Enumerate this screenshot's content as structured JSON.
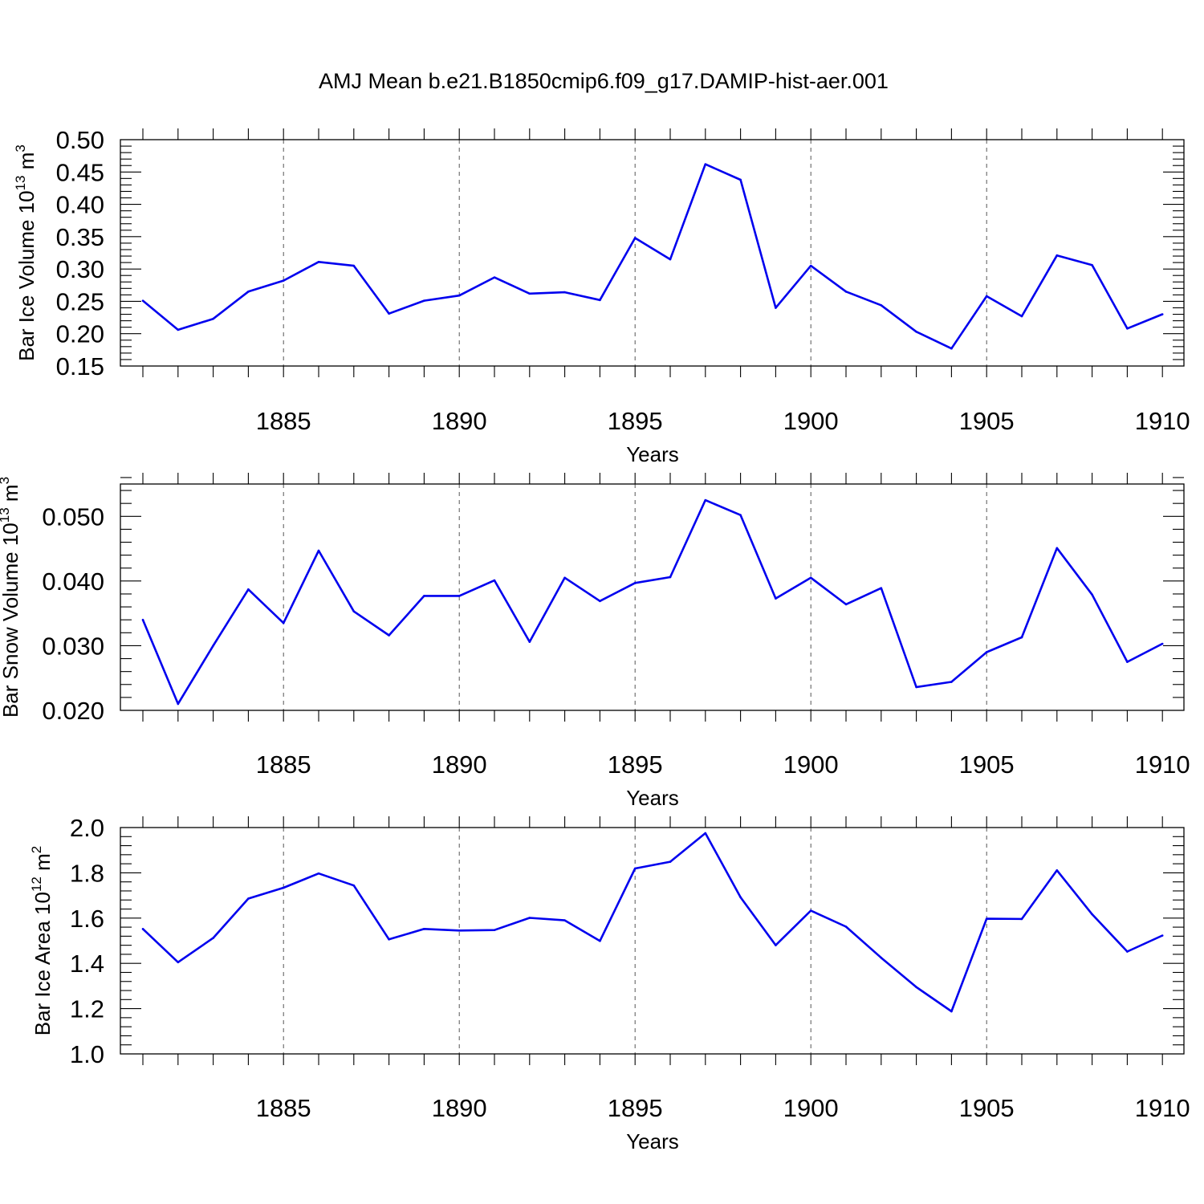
{
  "figure": {
    "title": "AMJ Mean b.e21.B1850cmip6.f09_g17.DAMIP-hist-aer.001"
  },
  "chart_data": [
    {
      "type": "line",
      "title": "",
      "ylabel_main": "Bar Ice Volume 10",
      "ylabel_exponent": "13",
      "ylabel_unit": " m",
      "ylabel_unit_exponent": "3",
      "xlabel": "Years",
      "ylim": [
        0.15,
        0.5
      ],
      "yticks": [
        0.15,
        0.2,
        0.25,
        0.3,
        0.35,
        0.4,
        0.45,
        0.5
      ],
      "yticks_labels": [
        "0.15",
        "0.20",
        "0.25",
        "0.30",
        "0.35",
        "0.40",
        "0.45",
        "0.50"
      ],
      "minor_y_step": 0.01,
      "xlim": [
        1881,
        1910
      ],
      "xticks": [
        1885,
        1890,
        1895,
        1900,
        1905,
        1910
      ],
      "xticks_labels": [
        "1885",
        "1890",
        "1895",
        "1900",
        "1905",
        "1910"
      ],
      "grid": "dashed vertical at major x ticks",
      "color": "#0000ee",
      "series": [
        {
          "name": "Bar Ice Volume",
          "x": [
            1881,
            1882,
            1883,
            1884,
            1885,
            1886,
            1887,
            1888,
            1889,
            1890,
            1891,
            1892,
            1893,
            1894,
            1895,
            1896,
            1897,
            1898,
            1899,
            1900,
            1901,
            1902,
            1903,
            1904,
            1905,
            1906,
            1907,
            1908,
            1909,
            1910
          ],
          "values": [
            0.251,
            0.206,
            0.223,
            0.265,
            0.282,
            0.311,
            0.305,
            0.231,
            0.251,
            0.259,
            0.287,
            0.262,
            0.264,
            0.252,
            0.348,
            0.315,
            0.462,
            0.438,
            0.24,
            0.305,
            0.265,
            0.244,
            0.203,
            0.177,
            0.258,
            0.227,
            0.321,
            0.306,
            0.208,
            0.23
          ]
        }
      ]
    },
    {
      "type": "line",
      "title": "",
      "ylabel_main": "Bar Snow Volume 10",
      "ylabel_exponent": "13",
      "ylabel_unit": " m",
      "ylabel_unit_exponent": "3",
      "xlabel": "Years",
      "ylim": [
        0.02,
        0.055
      ],
      "yticks": [
        0.02,
        0.03,
        0.04,
        0.05
      ],
      "yticks_labels": [
        "0.020",
        "0.030",
        "0.040",
        "0.050"
      ],
      "minor_y_step": 0.002,
      "xlim": [
        1881,
        1910
      ],
      "xticks": [
        1885,
        1890,
        1895,
        1900,
        1905,
        1910
      ],
      "xticks_labels": [
        "1885",
        "1890",
        "1895",
        "1900",
        "1905",
        "1910"
      ],
      "grid": "dashed vertical at major x ticks",
      "color": "#0000ee",
      "series": [
        {
          "name": "Bar Snow Volume",
          "x": [
            1881,
            1882,
            1883,
            1884,
            1885,
            1886,
            1887,
            1888,
            1889,
            1890,
            1891,
            1892,
            1893,
            1894,
            1895,
            1896,
            1897,
            1898,
            1899,
            1900,
            1901,
            1902,
            1903,
            1904,
            1905,
            1906,
            1907,
            1908,
            1909,
            1910
          ],
          "values": [
            0.034,
            0.021,
            0.03,
            0.0387,
            0.0335,
            0.0447,
            0.0353,
            0.0316,
            0.0377,
            0.0377,
            0.0401,
            0.0306,
            0.0405,
            0.0369,
            0.0397,
            0.0406,
            0.0525,
            0.0502,
            0.0373,
            0.0405,
            0.0364,
            0.0389,
            0.0236,
            0.0244,
            0.029,
            0.0313,
            0.0451,
            0.0379,
            0.0275,
            0.0303
          ]
        }
      ]
    },
    {
      "type": "line",
      "title": "",
      "ylabel_main": "Bar Ice Area 10",
      "ylabel_exponent": "12",
      "ylabel_unit": " m",
      "ylabel_unit_exponent": "2",
      "xlabel": "Years",
      "ylim": [
        1.0,
        2.0
      ],
      "yticks": [
        1.0,
        1.2,
        1.4,
        1.6,
        1.8,
        2.0
      ],
      "yticks_labels": [
        "1.0",
        "1.2",
        "1.4",
        "1.6",
        "1.8",
        "2.0"
      ],
      "minor_y_step": 0.04,
      "xlim": [
        1881,
        1910
      ],
      "xticks": [
        1885,
        1890,
        1895,
        1900,
        1905,
        1910
      ],
      "xticks_labels": [
        "1885",
        "1890",
        "1895",
        "1900",
        "1905",
        "1910"
      ],
      "grid": "dashed vertical at major x ticks",
      "color": "#0000ee",
      "series": [
        {
          "name": "Bar Ice Area",
          "x": [
            1881,
            1882,
            1883,
            1884,
            1885,
            1886,
            1887,
            1888,
            1889,
            1890,
            1891,
            1892,
            1893,
            1894,
            1895,
            1896,
            1897,
            1898,
            1899,
            1900,
            1901,
            1902,
            1903,
            1904,
            1905,
            1906,
            1907,
            1908,
            1909,
            1910
          ],
          "values": [
            1.552,
            1.405,
            1.512,
            1.686,
            1.734,
            1.797,
            1.744,
            1.506,
            1.552,
            1.545,
            1.547,
            1.601,
            1.59,
            1.499,
            1.819,
            1.849,
            1.975,
            1.692,
            1.48,
            1.633,
            1.562,
            1.425,
            1.295,
            1.188,
            1.597,
            1.596,
            1.811,
            1.617,
            1.452,
            1.523
          ]
        }
      ]
    }
  ]
}
